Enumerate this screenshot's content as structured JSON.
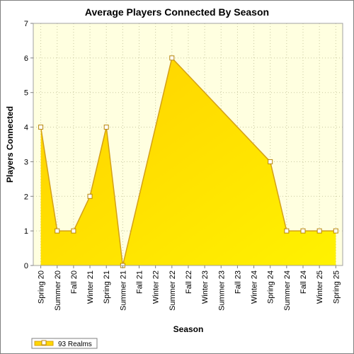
{
  "chart_data": {
    "type": "area",
    "title": "Average Players Connected By Season",
    "xlabel": "Season",
    "ylabel": "Players Connected",
    "categories": [
      "Spring 20",
      "Summer 20",
      "Fall 20",
      "Winter 21",
      "Spring 21",
      "Summer 21",
      "Fall 21",
      "Winter 22",
      "Summer 22",
      "Fall 22",
      "Winter 23",
      "Summer 23",
      "Fall 23",
      "Winter 24",
      "Spring 24",
      "Summer 24",
      "Fall 24",
      "Winter 25",
      "Spring 25"
    ],
    "ylim": [
      0,
      7
    ],
    "yticks": [
      0,
      1,
      2,
      3,
      4,
      5,
      6,
      7
    ],
    "grid": true,
    "legend_position": "bottom-left",
    "series": [
      {
        "name": "93 Realms",
        "values": [
          4,
          1,
          1,
          2,
          4,
          0,
          null,
          null,
          6,
          null,
          null,
          null,
          null,
          null,
          3,
          1,
          1,
          1,
          1
        ],
        "color": "#FFD700",
        "line_color": "#D4A017"
      }
    ],
    "plot_background": "#FFFFE0"
  }
}
